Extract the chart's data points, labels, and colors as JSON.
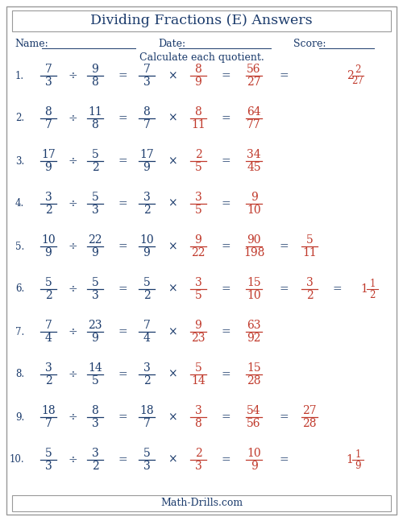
{
  "title": "Dividing Fractions (E) Answers",
  "name_label": "Name:",
  "date_label": "Date:",
  "score_label": "Score:",
  "instruction": "Calculate each quotient.",
  "footer": "Math-Drills.com",
  "problems": [
    {
      "num": "1.",
      "q_n1": "7",
      "q_d1": "3",
      "q_n2": "9",
      "q_d2": "8",
      "r_n1": "7",
      "r_d1": "3",
      "r_n2": "8",
      "r_d2": "9",
      "ans_n": "56",
      "ans_d": "27",
      "has_mixed": true,
      "has_simplified": false,
      "simplified_n": "",
      "simplified_d": "",
      "mixed_whole": "2",
      "mixed_n": "2",
      "mixed_d": "27"
    },
    {
      "num": "2.",
      "q_n1": "8",
      "q_d1": "7",
      "q_n2": "11",
      "q_d2": "8",
      "r_n1": "8",
      "r_d1": "7",
      "r_n2": "8",
      "r_d2": "11",
      "ans_n": "64",
      "ans_d": "77",
      "has_mixed": false,
      "has_simplified": false,
      "simplified_n": "",
      "simplified_d": "",
      "mixed_whole": "",
      "mixed_n": "",
      "mixed_d": ""
    },
    {
      "num": "3.",
      "q_n1": "17",
      "q_d1": "9",
      "q_n2": "5",
      "q_d2": "2",
      "r_n1": "17",
      "r_d1": "9",
      "r_n2": "2",
      "r_d2": "5",
      "ans_n": "34",
      "ans_d": "45",
      "has_mixed": false,
      "has_simplified": false,
      "simplified_n": "",
      "simplified_d": "",
      "mixed_whole": "",
      "mixed_n": "",
      "mixed_d": ""
    },
    {
      "num": "4.",
      "q_n1": "3",
      "q_d1": "2",
      "q_n2": "5",
      "q_d2": "3",
      "r_n1": "3",
      "r_d1": "2",
      "r_n2": "3",
      "r_d2": "5",
      "ans_n": "9",
      "ans_d": "10",
      "has_mixed": false,
      "has_simplified": false,
      "simplified_n": "",
      "simplified_d": "",
      "mixed_whole": "",
      "mixed_n": "",
      "mixed_d": ""
    },
    {
      "num": "5.",
      "q_n1": "10",
      "q_d1": "9",
      "q_n2": "22",
      "q_d2": "9",
      "r_n1": "10",
      "r_d1": "9",
      "r_n2": "9",
      "r_d2": "22",
      "ans_n": "90",
      "ans_d": "198",
      "has_simplified": true,
      "simplified_n": "5",
      "simplified_d": "11",
      "has_mixed": false,
      "mixed_whole": "",
      "mixed_n": "",
      "mixed_d": ""
    },
    {
      "num": "6.",
      "q_n1": "5",
      "q_d1": "2",
      "q_n2": "5",
      "q_d2": "3",
      "r_n1": "5",
      "r_d1": "2",
      "r_n2": "3",
      "r_d2": "5",
      "ans_n": "15",
      "ans_d": "10",
      "has_simplified": true,
      "simplified_n": "3",
      "simplified_d": "2",
      "has_mixed": true,
      "mixed_whole": "1",
      "mixed_n": "1",
      "mixed_d": "2"
    },
    {
      "num": "7.",
      "q_n1": "7",
      "q_d1": "4",
      "q_n2": "23",
      "q_d2": "9",
      "r_n1": "7",
      "r_d1": "4",
      "r_n2": "9",
      "r_d2": "23",
      "ans_n": "63",
      "ans_d": "92",
      "has_mixed": false,
      "has_simplified": false,
      "simplified_n": "",
      "simplified_d": "",
      "mixed_whole": "",
      "mixed_n": "",
      "mixed_d": ""
    },
    {
      "num": "8.",
      "q_n1": "3",
      "q_d1": "2",
      "q_n2": "14",
      "q_d2": "5",
      "r_n1": "3",
      "r_d1": "2",
      "r_n2": "5",
      "r_d2": "14",
      "ans_n": "15",
      "ans_d": "28",
      "has_mixed": false,
      "has_simplified": false,
      "simplified_n": "",
      "simplified_d": "",
      "mixed_whole": "",
      "mixed_n": "",
      "mixed_d": ""
    },
    {
      "num": "9.",
      "q_n1": "18",
      "q_d1": "7",
      "q_n2": "8",
      "q_d2": "3",
      "r_n1": "18",
      "r_d1": "7",
      "r_n2": "3",
      "r_d2": "8",
      "ans_n": "54",
      "ans_d": "56",
      "has_simplified": true,
      "simplified_n": "27",
      "simplified_d": "28",
      "has_mixed": false,
      "mixed_whole": "",
      "mixed_n": "",
      "mixed_d": ""
    },
    {
      "num": "10.",
      "q_n1": "5",
      "q_d1": "3",
      "q_n2": "3",
      "q_d2": "2",
      "r_n1": "5",
      "r_d1": "3",
      "r_n2": "2",
      "r_d2": "3",
      "ans_n": "10",
      "ans_d": "9",
      "has_simplified": false,
      "simplified_n": "",
      "simplified_d": "",
      "has_mixed": true,
      "mixed_whole": "1",
      "mixed_n": "1",
      "mixed_d": "9"
    }
  ],
  "blue_color": "#1a3a6b",
  "red_color": "#c0392b",
  "bg_color": "#ffffff",
  "border_color": "#999999"
}
